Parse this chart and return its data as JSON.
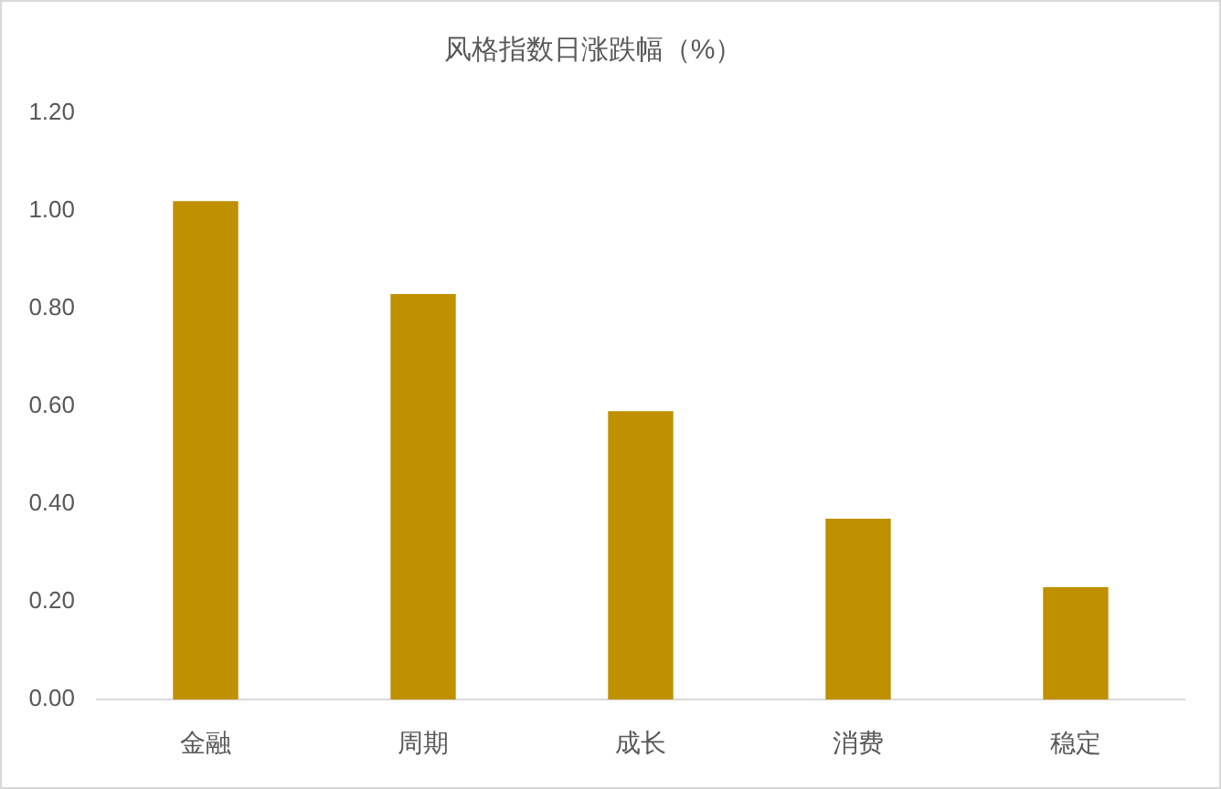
{
  "chart_data": {
    "type": "bar",
    "title": "风格指数日涨跌幅（%）",
    "categories": [
      "金融",
      "周期",
      "成长",
      "消费",
      "稳定"
    ],
    "values": [
      1.02,
      0.83,
      0.59,
      0.37,
      0.23
    ],
    "color": "#bf9000",
    "ylim": [
      0,
      1.2
    ],
    "yticks": [
      {
        "value": 0,
        "label": "0.00"
      },
      {
        "value": 0.2,
        "label": "0.20"
      },
      {
        "value": 0.4,
        "label": "0.40"
      },
      {
        "value": 0.6,
        "label": "0.60"
      },
      {
        "value": 0.8,
        "label": "0.80"
      },
      {
        "value": 1.0,
        "label": "1.00"
      },
      {
        "value": 1.2,
        "label": "1.20"
      }
    ]
  }
}
